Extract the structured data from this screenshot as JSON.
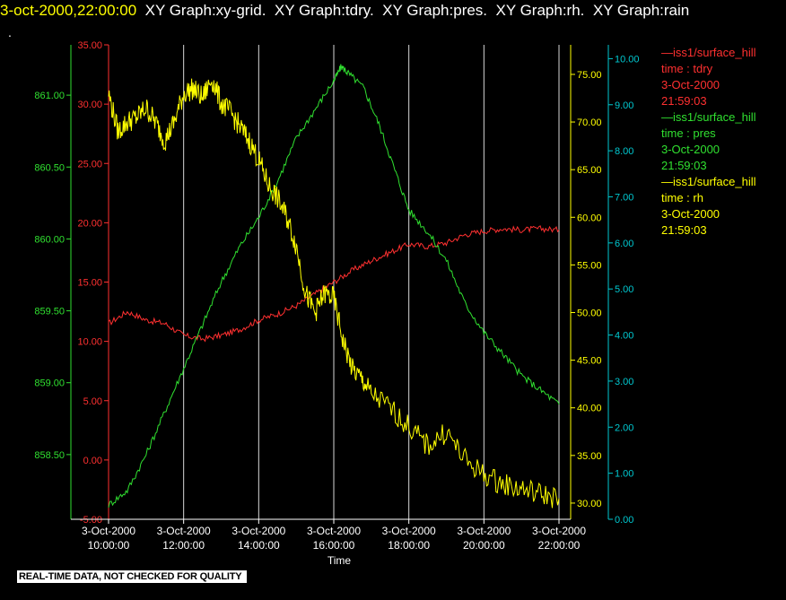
{
  "header": {
    "timestamp": "3-oct-2000,22:00:00",
    "titles": "  XY Graph:xy-grid.  XY Graph:tdry.  XY Graph:pres.  XY Graph:rh.  XY Graph:rain",
    "dot": "."
  },
  "colors": {
    "tdry": "#ff3030",
    "pres": "#30e030",
    "rh": "#ffff00",
    "rain": "#00c8d0",
    "grid": "#ffffff",
    "axis": "#ffffff",
    "background": "#000000"
  },
  "legend": [
    {
      "series": "—iss1/surface_hill",
      "var": "time : tdry",
      "date": "3-Oct-2000",
      "time": "21:59:03",
      "color": "#ff3030"
    },
    {
      "series": "—iss1/surface_hill",
      "var": "time : pres",
      "date": "3-Oct-2000",
      "time": "21:59:03",
      "color": "#30e030"
    },
    {
      "series": "—iss1/surface_hill",
      "var": "time : rh",
      "date": "3-Oct-2000",
      "time": "21:59:03",
      "color": "#ffff00"
    }
  ],
  "banner": "REAL-TIME DATA, NOT CHECKED FOR QUALITY",
  "chart_data": {
    "type": "line",
    "xlabel": "Time",
    "xlim": [
      10,
      22
    ],
    "x_ticks": [
      {
        "x": 10,
        "date": "3-Oct-2000",
        "time": "10:00:00"
      },
      {
        "x": 12,
        "date": "3-Oct-2000",
        "time": "12:00:00"
      },
      {
        "x": 14,
        "date": "3-Oct-2000",
        "time": "14:00:00"
      },
      {
        "x": 16,
        "date": "3-Oct-2000",
        "time": "16:00:00"
      },
      {
        "x": 18,
        "date": "3-Oct-2000",
        "time": "18:00:00"
      },
      {
        "x": 20,
        "date": "3-Oct-2000",
        "time": "20:00:00"
      },
      {
        "x": 22,
        "date": "3-Oct-2000",
        "time": "22:00:00"
      }
    ],
    "grid": "vertical",
    "axes": {
      "pres": {
        "ylim": [
          858.05,
          861.35
        ],
        "ticks": [
          "858.50",
          "859.00",
          "859.50",
          "860.00",
          "860.50",
          "861.00"
        ]
      },
      "tdry": {
        "ylim": [
          -5,
          35
        ],
        "ticks": [
          "-5.00",
          "0.00",
          "5.00",
          "10.00",
          "15.00",
          "20.00",
          "25.00",
          "30.00",
          "35.00"
        ]
      },
      "rh": {
        "ylim": [
          28.3,
          78.1
        ],
        "ticks": [
          "30.00",
          "35.00",
          "40.00",
          "45.00",
          "50.00",
          "55.00",
          "60.00",
          "65.00",
          "70.00",
          "75.00"
        ]
      },
      "rain": {
        "ylim": [
          0,
          10.3
        ],
        "ticks": [
          "0.00",
          "1.00",
          "2.00",
          "3.00",
          "4.00",
          "5.00",
          "6.00",
          "7.00",
          "8.00",
          "9.00",
          "10.00"
        ]
      }
    },
    "series": [
      {
        "name": "iss1/surface_hill time : tdry",
        "axis": "tdry",
        "x": [
          10.0,
          10.5,
          11.0,
          11.5,
          12.0,
          12.5,
          13.0,
          13.5,
          14.0,
          14.5,
          15.0,
          15.5,
          16.0,
          16.5,
          17.0,
          17.5,
          18.0,
          18.5,
          19.0,
          19.5,
          20.0,
          20.5,
          21.0,
          21.5,
          22.0
        ],
        "y": [
          11.5,
          12.5,
          11.8,
          11.5,
          10.5,
          10.2,
          10.5,
          11.0,
          11.8,
          12.3,
          13.0,
          14.0,
          15.0,
          16.0,
          16.8,
          17.5,
          18.2,
          18.0,
          18.3,
          19.0,
          19.3,
          19.5,
          19.4,
          19.5,
          19.4
        ]
      },
      {
        "name": "iss1/surface_hill time : pres",
        "axis": "pres",
        "x": [
          10.0,
          10.5,
          11.0,
          11.5,
          12.0,
          12.5,
          13.0,
          13.5,
          14.0,
          14.5,
          15.0,
          15.5,
          16.0,
          16.2,
          16.4,
          16.8,
          17.2,
          17.6,
          18.0,
          18.5,
          19.0,
          19.5,
          20.0,
          20.5,
          21.0,
          21.5,
          22.0
        ],
        "y": [
          858.15,
          858.25,
          858.5,
          858.8,
          859.1,
          859.4,
          859.7,
          859.95,
          860.15,
          860.4,
          860.7,
          860.9,
          861.1,
          861.2,
          861.15,
          861.05,
          860.8,
          860.5,
          860.2,
          860.05,
          859.85,
          859.55,
          859.35,
          859.2,
          859.05,
          858.95,
          858.85
        ]
      },
      {
        "name": "iss1/surface_hill time : rh",
        "axis": "rh",
        "x": [
          10.0,
          10.25,
          10.5,
          10.75,
          11.0,
          11.25,
          11.5,
          11.75,
          12.0,
          12.25,
          12.5,
          12.75,
          13.0,
          13.25,
          13.5,
          13.75,
          14.0,
          14.25,
          14.5,
          14.75,
          15.0,
          15.25,
          15.5,
          15.75,
          16.0,
          16.25,
          16.5,
          16.75,
          17.0,
          17.5,
          18.0,
          18.5,
          19.0,
          19.5,
          20.0,
          20.5,
          21.0,
          21.5,
          22.0
        ],
        "y": [
          73.0,
          69.0,
          70.0,
          70.5,
          71.5,
          70.0,
          68.0,
          70.0,
          73.0,
          73.5,
          72.5,
          74.5,
          72.0,
          71.0,
          69.5,
          68.0,
          66.0,
          63.5,
          62.0,
          60.0,
          57.0,
          52.0,
          50.0,
          52.0,
          51.5,
          47.0,
          44.0,
          43.0,
          41.5,
          40.0,
          38.0,
          36.0,
          37.5,
          34.5,
          33.0,
          32.0,
          31.5,
          31.0,
          30.5
        ]
      }
    ]
  }
}
